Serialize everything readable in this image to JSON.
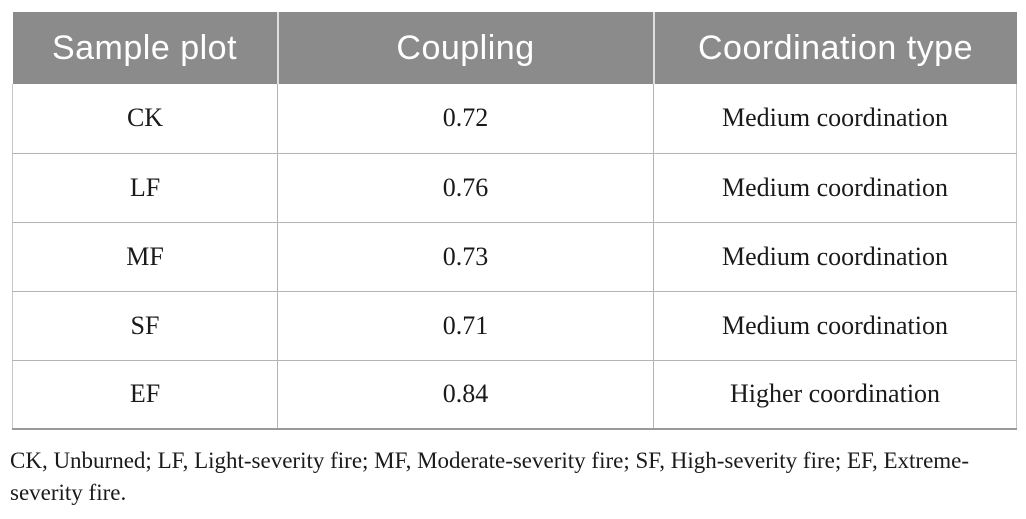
{
  "table": {
    "columns": [
      {
        "label": "Sample plot"
      },
      {
        "label": "Coupling"
      },
      {
        "label": "Coordination type"
      }
    ],
    "rows": [
      {
        "plot": "CK",
        "coupling": "0.72",
        "type": "Medium coordination"
      },
      {
        "plot": "LF",
        "coupling": "0.76",
        "type": "Medium coordination"
      },
      {
        "plot": "MF",
        "coupling": "0.73",
        "type": "Medium coordination"
      },
      {
        "plot": "SF",
        "coupling": "0.71",
        "type": "Medium coordination"
      },
      {
        "plot": "EF",
        "coupling": "0.84",
        "type": "Higher coordination"
      }
    ]
  },
  "footnote": "CK, Unburned; LF, Light-severity fire; MF, Moderate-severity fire; SF, High-severity fire; EF, Extreme-severity fire.",
  "colors": {
    "header_bg": "#8b8b8b",
    "header_text": "#ffffff",
    "body_text": "#1a1a1a",
    "cell_border": "#b4b4b4",
    "bottom_rule": "#9a9a9a"
  }
}
